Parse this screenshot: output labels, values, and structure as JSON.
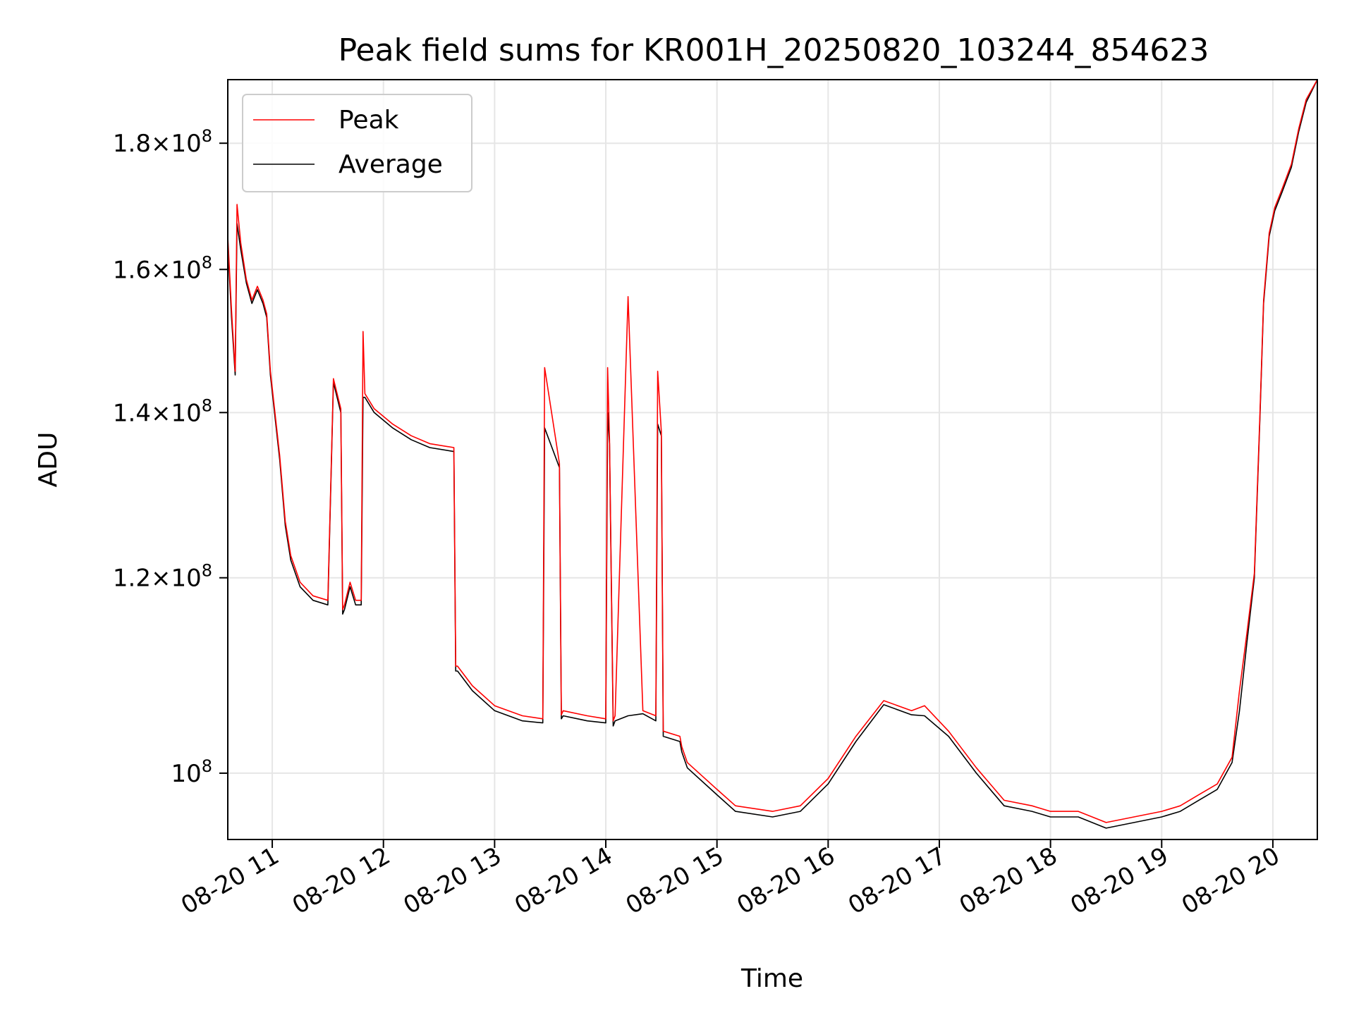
{
  "chart_data": {
    "type": "line",
    "title": "Peak field sums for KR001H_20250820_103244_854623",
    "xlabel": "Time",
    "ylabel": "ADU",
    "yscale": "log",
    "grid": true,
    "legend_position": "upper-left",
    "xlim": [
      "2025-08-20 10:36",
      "2025-08-20 20:24"
    ],
    "ylim": [
      94000000.0,
      191000000.0
    ],
    "x_ticks": [
      {
        "value": "2025-08-20 11:00",
        "label": "08-20 11"
      },
      {
        "value": "2025-08-20 12:00",
        "label": "08-20 12"
      },
      {
        "value": "2025-08-20 13:00",
        "label": "08-20 13"
      },
      {
        "value": "2025-08-20 14:00",
        "label": "08-20 14"
      },
      {
        "value": "2025-08-20 15:00",
        "label": "08-20 15"
      },
      {
        "value": "2025-08-20 16:00",
        "label": "08-20 16"
      },
      {
        "value": "2025-08-20 17:00",
        "label": "08-20 17"
      },
      {
        "value": "2025-08-20 18:00",
        "label": "08-20 18"
      },
      {
        "value": "2025-08-20 19:00",
        "label": "08-20 19"
      },
      {
        "value": "2025-08-20 20:00",
        "label": "08-20 20"
      }
    ],
    "y_ticks": [
      {
        "value": 100000000.0,
        "mantissa": "",
        "exp": "8"
      },
      {
        "value": 120000000.0,
        "mantissa": "1.2",
        "exp": "8"
      },
      {
        "value": 140000000.0,
        "mantissa": "1.4",
        "exp": "8"
      },
      {
        "value": 160000000.0,
        "mantissa": "1.6",
        "exp": "8"
      },
      {
        "value": 180000000.0,
        "mantissa": "1.8",
        "exp": "8"
      }
    ],
    "series": [
      {
        "name": "Average",
        "color": "#000000",
        "x": [
          "2025-08-20 10:36",
          "2025-08-20 10:38",
          "2025-08-20 10:40",
          "2025-08-20 10:41",
          "2025-08-20 10:43",
          "2025-08-20 10:46",
          "2025-08-20 10:49",
          "2025-08-20 10:52",
          "2025-08-20 10:55",
          "2025-08-20 10:57",
          "2025-08-20 10:59",
          "2025-08-20 11:04",
          "2025-08-20 11:07",
          "2025-08-20 11:10",
          "2025-08-20 11:15",
          "2025-08-20 11:22",
          "2025-08-20 11:30",
          "2025-08-20 11:33",
          "2025-08-20 11:34",
          "2025-08-20 11:37",
          "2025-08-20 11:38",
          "2025-08-20 11:39",
          "2025-08-20 11:42",
          "2025-08-20 11:45",
          "2025-08-20 11:48",
          "2025-08-20 11:49",
          "2025-08-20 11:50",
          "2025-08-20 11:55",
          "2025-08-20 12:05",
          "2025-08-20 12:15",
          "2025-08-20 12:25",
          "2025-08-20 12:38",
          "2025-08-20 12:39",
          "2025-08-20 12:40",
          "2025-08-20 12:48",
          "2025-08-20 13:00",
          "2025-08-20 13:15",
          "2025-08-20 13:26",
          "2025-08-20 13:27",
          "2025-08-20 13:35",
          "2025-08-20 13:36",
          "2025-08-20 13:37",
          "2025-08-20 13:50",
          "2025-08-20 14:00",
          "2025-08-20 14:01",
          "2025-08-20 14:02",
          "2025-08-20 14:04",
          "2025-08-20 14:05",
          "2025-08-20 14:12",
          "2025-08-20 14:20",
          "2025-08-20 14:27",
          "2025-08-20 14:28",
          "2025-08-20 14:30",
          "2025-08-20 14:31",
          "2025-08-20 14:40",
          "2025-08-20 14:41",
          "2025-08-20 14:44",
          "2025-08-20 15:00",
          "2025-08-20 15:10",
          "2025-08-20 15:30",
          "2025-08-20 15:45",
          "2025-08-20 16:00",
          "2025-08-20 16:15",
          "2025-08-20 16:30",
          "2025-08-20 16:45",
          "2025-08-20 16:52",
          "2025-08-20 17:05",
          "2025-08-20 17:20",
          "2025-08-20 17:35",
          "2025-08-20 17:50",
          "2025-08-20 18:00",
          "2025-08-20 18:15",
          "2025-08-20 18:30",
          "2025-08-20 19:00",
          "2025-08-20 19:10",
          "2025-08-20 19:20",
          "2025-08-20 19:30",
          "2025-08-20 19:38",
          "2025-08-20 19:42",
          "2025-08-20 19:46",
          "2025-08-20 19:50",
          "2025-08-20 19:53",
          "2025-08-20 19:55",
          "2025-08-20 19:58",
          "2025-08-20 20:01",
          "2025-08-20 20:05",
          "2025-08-20 20:10",
          "2025-08-20 20:14",
          "2025-08-20 20:16",
          "2025-08-20 20:18",
          "2025-08-20 20:24"
        ],
        "y": [
          164000000.0,
          153000000.0,
          145000000.0,
          167000000.0,
          163000000.0,
          158000000.0,
          155000000.0,
          157000000.0,
          155000000.0,
          153000000.0,
          145000000.0,
          134000000.0,
          126000000.0,
          122000000.0,
          119000000.0,
          117500000.0,
          117000000.0,
          144000000.0,
          143000000.0,
          140000000.0,
          116000000.0,
          116500000.0,
          119000000.0,
          117000000.0,
          117000000.0,
          142000000.0,
          142000000.0,
          140000000.0,
          138000000.0,
          136500000.0,
          135500000.0,
          135000000.0,
          110000000.0,
          110000000.0,
          108000000.0,
          106000000.0,
          105000000.0,
          104800000.0,
          138000000.0,
          133000000.0,
          105200000.0,
          105500000.0,
          105000000.0,
          104800000.0,
          140000000.0,
          136000000.0,
          104500000.0,
          105000000.0,
          105500000.0,
          105700000.0,
          105000000.0,
          138500000.0,
          137000000.0,
          103500000.0,
          103000000.0,
          102000000.0,
          100500000.0,
          98000000.0,
          96500000.0,
          96000000.0,
          96500000.0,
          99000000.0,
          103000000.0,
          106600000.0,
          105600000.0,
          105500000.0,
          103500000.0,
          100000000.0,
          97000000.0,
          96500000.0,
          96000000.0,
          96000000.0,
          95000000.0,
          96000000.0,
          96500000.0,
          97500000.0,
          98500000.0,
          101000000.0,
          106000000.0,
          113000000.0,
          120000000.0,
          139000000.0,
          155000000.0,
          165000000.0,
          169000000.0,
          172000000.0,
          176000000.0,
          182000000.0,
          184500000.0,
          187000000.0,
          191000000.0
        ]
      },
      {
        "name": "Peak",
        "color": "#ff0000",
        "x": [
          "2025-08-20 10:36",
          "2025-08-20 10:38",
          "2025-08-20 10:40",
          "2025-08-20 10:41",
          "2025-08-20 10:43",
          "2025-08-20 10:46",
          "2025-08-20 10:49",
          "2025-08-20 10:52",
          "2025-08-20 10:55",
          "2025-08-20 10:57",
          "2025-08-20 10:59",
          "2025-08-20 11:04",
          "2025-08-20 11:07",
          "2025-08-20 11:10",
          "2025-08-20 11:15",
          "2025-08-20 11:22",
          "2025-08-20 11:30",
          "2025-08-20 11:33",
          "2025-08-20 11:34",
          "2025-08-20 11:37",
          "2025-08-20 11:38",
          "2025-08-20 11:39",
          "2025-08-20 11:42",
          "2025-08-20 11:45",
          "2025-08-20 11:48",
          "2025-08-20 11:49",
          "2025-08-20 11:50",
          "2025-08-20 11:55",
          "2025-08-20 12:05",
          "2025-08-20 12:15",
          "2025-08-20 12:25",
          "2025-08-20 12:38",
          "2025-08-20 12:39",
          "2025-08-20 12:40",
          "2025-08-20 12:48",
          "2025-08-20 13:00",
          "2025-08-20 13:15",
          "2025-08-20 13:26",
          "2025-08-20 13:27",
          "2025-08-20 13:35",
          "2025-08-20 13:36",
          "2025-08-20 13:37",
          "2025-08-20 13:50",
          "2025-08-20 14:00",
          "2025-08-20 14:01",
          "2025-08-20 14:02",
          "2025-08-20 14:04",
          "2025-08-20 14:05",
          "2025-08-20 14:12",
          "2025-08-20 14:20",
          "2025-08-20 14:27",
          "2025-08-20 14:28",
          "2025-08-20 14:30",
          "2025-08-20 14:31",
          "2025-08-20 14:40",
          "2025-08-20 14:41",
          "2025-08-20 14:44",
          "2025-08-20 15:00",
          "2025-08-20 15:10",
          "2025-08-20 15:30",
          "2025-08-20 15:45",
          "2025-08-20 16:00",
          "2025-08-20 16:15",
          "2025-08-20 16:30",
          "2025-08-20 16:45",
          "2025-08-20 16:52",
          "2025-08-20 17:05",
          "2025-08-20 17:20",
          "2025-08-20 17:35",
          "2025-08-20 17:50",
          "2025-08-20 18:00",
          "2025-08-20 18:15",
          "2025-08-20 18:30",
          "2025-08-20 19:00",
          "2025-08-20 19:10",
          "2025-08-20 19:20",
          "2025-08-20 19:30",
          "2025-08-20 19:38",
          "2025-08-20 19:42",
          "2025-08-20 19:46",
          "2025-08-20 19:50",
          "2025-08-20 19:53",
          "2025-08-20 19:55",
          "2025-08-20 19:58",
          "2025-08-20 20:01",
          "2025-08-20 20:05",
          "2025-08-20 20:10",
          "2025-08-20 20:14",
          "2025-08-20 20:16",
          "2025-08-20 20:18",
          "2025-08-20 20:24"
        ],
        "y": [
          165000000.0,
          154000000.0,
          145500000.0,
          170000000.0,
          164000000.0,
          158500000.0,
          155500000.0,
          157500000.0,
          155500000.0,
          153500000.0,
          145500000.0,
          134500000.0,
          126500000.0,
          122500000.0,
          119500000.0,
          118000000.0,
          117500000.0,
          144500000.0,
          143500000.0,
          140500000.0,
          116500000.0,
          117000000.0,
          119500000.0,
          117500000.0,
          117500000.0,
          151000000.0,
          142500000.0,
          140500000.0,
          138500000.0,
          137000000.0,
          136000000.0,
          135500000.0,
          110500000.0,
          110500000.0,
          108500000.0,
          106500000.0,
          105500000.0,
          105200000.0,
          146000000.0,
          133500000.0,
          105600000.0,
          106000000.0,
          105500000.0,
          105200000.0,
          146000000.0,
          136500000.0,
          105000000.0,
          105500000.0,
          156000000.0,
          106000000.0,
          105500000.0,
          145500000.0,
          137500000.0,
          104000000.0,
          103500000.0,
          102500000.0,
          101000000.0,
          98500000.0,
          97000000.0,
          96500000.0,
          97000000.0,
          99500000.0,
          103500000.0,
          107000000.0,
          106000000.0,
          106500000.0,
          104000000.0,
          100500000.0,
          97500000.0,
          97000000.0,
          96500000.0,
          96500000.0,
          95500000.0,
          96500000.0,
          97000000.0,
          98000000.0,
          99000000.0,
          101500000.0,
          108000000.0,
          114000000.0,
          120500000.0,
          139500000.0,
          155500000.0,
          165500000.0,
          169500000.0,
          172500000.0,
          176500000.0,
          182500000.0,
          185000000.0,
          187500000.0,
          191000000.0
        ]
      }
    ]
  }
}
